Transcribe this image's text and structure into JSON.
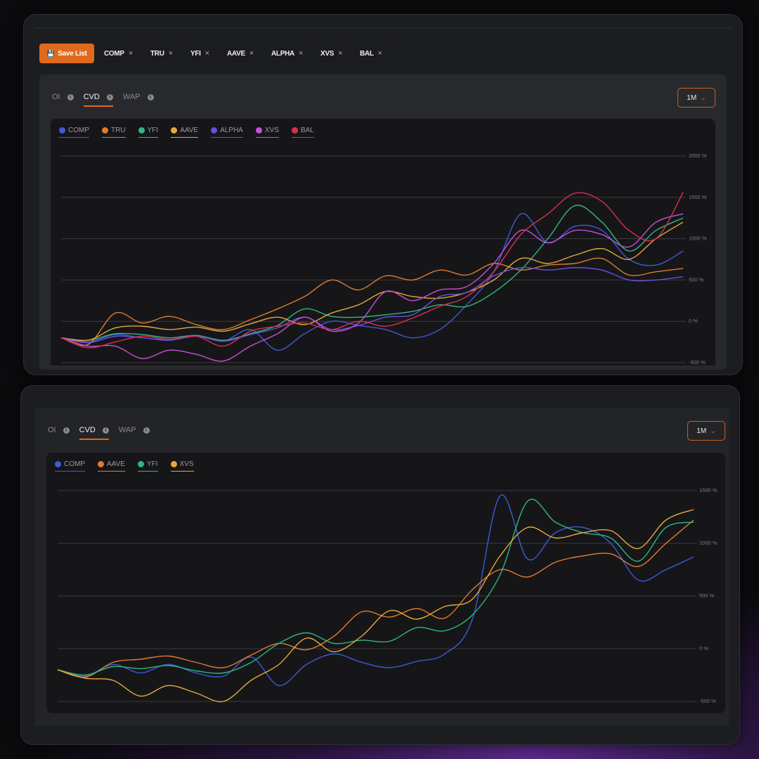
{
  "toolbar": {
    "save_button": "Save List",
    "chips": [
      "COMP",
      "TRU",
      "YFI",
      "AAVE",
      "ALPHA",
      "XVS",
      "BAL"
    ]
  },
  "panels": [
    {
      "tabs": [
        "OI",
        "CVD",
        "WAP"
      ],
      "period": "1M"
    },
    {
      "tabs": [
        "OI",
        "CVD",
        "WAP"
      ],
      "period": "1M"
    }
  ],
  "chart_data": [
    {
      "type": "line",
      "categories": [
        null,
        null,
        null,
        null,
        null,
        null,
        null,
        null,
        null,
        null,
        null,
        null,
        null,
        null,
        null,
        null,
        null,
        null,
        null,
        null,
        null,
        null,
        null,
        null
      ],
      "ylim": [
        -500,
        2000
      ],
      "yticks": [
        {
          "value": -500,
          "label": "-500 %"
        },
        {
          "value": 0,
          "label": "0 %"
        },
        {
          "value": 500,
          "label": "500 %"
        },
        {
          "value": 1000,
          "label": "1000 %"
        },
        {
          "value": 1500,
          "label": "1500 %"
        },
        {
          "value": 2000,
          "label": "2000 %"
        }
      ],
      "grid": true,
      "series": [
        {
          "name": "COMP",
          "color": "#3d5bd9",
          "values": [
            -200,
            -250,
            -160,
            -200,
            -220,
            -170,
            -240,
            -100,
            -350,
            -150,
            0,
            -50,
            -100,
            -200,
            -100,
            200,
            600,
            1300,
            950,
            1150,
            1100,
            750,
            680,
            850
          ]
        },
        {
          "name": "TRU",
          "color": "#e07b2e",
          "values": [
            -200,
            -280,
            100,
            -20,
            60,
            -40,
            -100,
            20,
            150,
            300,
            500,
            380,
            550,
            500,
            620,
            560,
            700,
            620,
            680,
            700,
            760,
            560,
            600,
            640
          ]
        },
        {
          "name": "YFI",
          "color": "#2fb67f",
          "values": [
            -200,
            -230,
            -150,
            -160,
            -200,
            -170,
            -230,
            -150,
            -50,
            150,
            60,
            50,
            80,
            120,
            200,
            180,
            350,
            620,
            1000,
            1400,
            1200,
            850,
            1100,
            1250
          ]
        },
        {
          "name": "AAVE",
          "color": "#e6a93a",
          "values": [
            -200,
            -230,
            -80,
            -60,
            -100,
            -70,
            -120,
            -30,
            50,
            -40,
            100,
            200,
            360,
            300,
            280,
            350,
            500,
            760,
            700,
            800,
            880,
            750,
            1000,
            1200
          ]
        },
        {
          "name": "ALPHA",
          "color": "#6b4fd8",
          "values": [
            -200,
            -260,
            -180,
            -200,
            -230,
            -180,
            -240,
            -160,
            -80,
            50,
            -100,
            -50,
            50,
            80,
            300,
            350,
            550,
            650,
            620,
            650,
            620,
            500,
            500,
            540
          ]
        },
        {
          "name": "XVS",
          "color": "#c94fd6",
          "values": [
            -200,
            -300,
            -300,
            -450,
            -350,
            -400,
            -480,
            -300,
            -150,
            50,
            -120,
            -20,
            360,
            250,
            380,
            420,
            700,
            1100,
            950,
            1100,
            1050,
            900,
            1200,
            1300
          ]
        },
        {
          "name": "BAL",
          "color": "#d9304f",
          "values": [
            -200,
            -320,
            -250,
            -180,
            -220,
            -180,
            -300,
            -120,
            -60,
            -20,
            -100,
            0,
            -60,
            40,
            180,
            300,
            600,
            1050,
            1300,
            1550,
            1450,
            1100,
            1000,
            1560
          ]
        }
      ]
    },
    {
      "type": "line",
      "categories": [
        null,
        null,
        null,
        null,
        null,
        null,
        null,
        null,
        null,
        null,
        null,
        null,
        null,
        null,
        null,
        null,
        null,
        null,
        null,
        null,
        null,
        null,
        null,
        null
      ],
      "ylim": [
        -500,
        1500
      ],
      "yticks": [
        {
          "value": -500,
          "label": "-500 %"
        },
        {
          "value": 0,
          "label": "0 %"
        },
        {
          "value": 500,
          "label": "500 %"
        },
        {
          "value": 1000,
          "label": "1000 %"
        },
        {
          "value": 1500,
          "label": "1500 %"
        }
      ],
      "grid": true,
      "series": [
        {
          "name": "COMP",
          "color": "#3d5bd9",
          "values": [
            -200,
            -260,
            -150,
            -230,
            -150,
            -230,
            -260,
            -80,
            -350,
            -150,
            -50,
            -130,
            -180,
            -120,
            -50,
            280,
            1450,
            850,
            1100,
            1150,
            1000,
            650,
            750,
            870
          ]
        },
        {
          "name": "AAVE",
          "color": "#e07b2e",
          "values": [
            -200,
            -270,
            -130,
            -100,
            -70,
            -130,
            -180,
            -60,
            50,
            -10,
            120,
            350,
            300,
            380,
            290,
            560,
            750,
            680,
            820,
            880,
            900,
            780,
            1000,
            1220
          ]
        },
        {
          "name": "YFI",
          "color": "#2fb67f",
          "values": [
            -200,
            -250,
            -170,
            -190,
            -160,
            -210,
            -230,
            -130,
            50,
            150,
            50,
            80,
            70,
            200,
            170,
            320,
            700,
            1400,
            1200,
            1100,
            1050,
            830,
            1150,
            1200
          ]
        },
        {
          "name": "XVS",
          "color": "#e6a93a",
          "values": [
            -200,
            -280,
            -300,
            -450,
            -350,
            -420,
            -500,
            -300,
            -150,
            100,
            -30,
            120,
            360,
            280,
            400,
            470,
            880,
            1150,
            1050,
            1100,
            1120,
            950,
            1220,
            1320
          ]
        }
      ]
    }
  ]
}
